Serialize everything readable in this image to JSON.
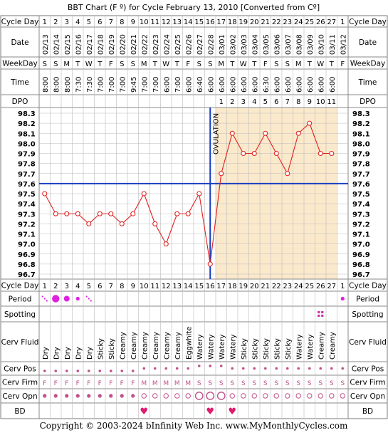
{
  "title": "BBT Chart (F º) for Cycle February 13, 2010  [Converted from Cº]",
  "footer": "Copyright © 2003-2024 bInfinity Web Inc.    www.MyMonthlyCycles.com",
  "row_labels": {
    "cycle_day": "Cycle Day",
    "date": "Date",
    "weekday": "WeekDay",
    "time": "Time",
    "dpo": "DPO",
    "period": "Period",
    "spotting": "Spotting",
    "cerv_fluid": "Cerv Fluid",
    "cerv_pos": "Cerv Pos",
    "cerv_firm": "Cerv Firm",
    "cerv_opn": "Cerv Opn",
    "bd": "BD"
  },
  "colors": {
    "grid": "#bbbbbb",
    "luteal_shade": "#fbe9cc",
    "line": "#e02020",
    "coverline": "#1a3fc0",
    "ovulation": "#1a3fc0",
    "period_dot": "#e020e0",
    "bd_heart": "#e01a6e",
    "spotting": "#cc33aa",
    "cerv_marker": "#c0508a"
  },
  "days": [
    {
      "cd": "1",
      "date": "02/13",
      "wd": "S",
      "time": "8:00",
      "fluid": "Dry",
      "firm": "F",
      "opn": "dot",
      "pos": "low"
    },
    {
      "cd": "2",
      "date": "02/14",
      "wd": "S",
      "time": "8:00",
      "fluid": "Dry",
      "firm": "F",
      "opn": "dot",
      "pos": "low"
    },
    {
      "cd": "3",
      "date": "02/15",
      "wd": "M",
      "time": "8:00",
      "fluid": "Dry",
      "firm": "F",
      "opn": "dot",
      "pos": "low"
    },
    {
      "cd": "4",
      "date": "02/16",
      "wd": "T",
      "time": "7:30",
      "fluid": "Dry",
      "firm": "F",
      "opn": "dot",
      "pos": "low"
    },
    {
      "cd": "5",
      "date": "02/17",
      "wd": "W",
      "time": "7:30",
      "fluid": "Dry",
      "firm": "F",
      "opn": "dot",
      "pos": "low"
    },
    {
      "cd": "6",
      "date": "02/18",
      "wd": "T",
      "time": "7:00",
      "fluid": "Sticky",
      "firm": "F",
      "opn": "dot",
      "pos": "low"
    },
    {
      "cd": "7",
      "date": "02/19",
      "wd": "F",
      "time": "7:00",
      "fluid": "Sticky",
      "firm": "F",
      "opn": "dot",
      "pos": "low"
    },
    {
      "cd": "8",
      "date": "02/20",
      "wd": "S",
      "time": "7:00",
      "fluid": "Creamy",
      "firm": "F",
      "opn": "dot",
      "pos": "low"
    },
    {
      "cd": "9",
      "date": "02/21",
      "wd": "S",
      "time": "9:45",
      "fluid": "Creamy",
      "firm": "F",
      "opn": "dot",
      "pos": "low"
    },
    {
      "cd": "10",
      "date": "02/22",
      "wd": "M",
      "time": "7:00",
      "fluid": "Creamy",
      "firm": "M",
      "opn": "open-sm",
      "pos": "mid"
    },
    {
      "cd": "11",
      "date": "02/23",
      "wd": "T",
      "time": "7:00",
      "fluid": "Creamy",
      "firm": "M",
      "opn": "open-sm",
      "pos": "mid"
    },
    {
      "cd": "12",
      "date": "02/24",
      "wd": "W",
      "time": "6:00",
      "fluid": "Creamy",
      "firm": "M",
      "opn": "open-sm",
      "pos": "mid"
    },
    {
      "cd": "13",
      "date": "02/25",
      "wd": "T",
      "time": "7:00",
      "fluid": "Creamy",
      "firm": "M",
      "opn": "open-sm",
      "pos": "mid"
    },
    {
      "cd": "14",
      "date": "02/26",
      "wd": "F",
      "time": "6:00",
      "fluid": "Eggwhite",
      "firm": "M",
      "opn": "open-sm",
      "pos": "mid"
    },
    {
      "cd": "15",
      "date": "02/27",
      "wd": "S",
      "time": "6:40",
      "fluid": "Watery",
      "firm": "S",
      "opn": "open-lg",
      "pos": "high"
    },
    {
      "cd": "16",
      "date": "02/28",
      "wd": "S",
      "time": "6:00",
      "fluid": "Watery",
      "firm": "S",
      "opn": "open-lg",
      "pos": "high"
    },
    {
      "cd": "17",
      "date": "03/01",
      "wd": "M",
      "time": "6:00",
      "fluid": "Watery",
      "firm": "S",
      "opn": "open-lg",
      "pos": "high"
    },
    {
      "cd": "18",
      "date": "03/02",
      "wd": "T",
      "time": "6:00",
      "fluid": "Watery",
      "firm": "S",
      "opn": "open-sm",
      "pos": "mid"
    },
    {
      "cd": "19",
      "date": "03/03",
      "wd": "W",
      "time": "6:00",
      "fluid": "Sticky",
      "firm": "S",
      "opn": "open-sm",
      "pos": "mid"
    },
    {
      "cd": "20",
      "date": "03/04",
      "wd": "T",
      "time": "6:00",
      "fluid": "Sticky",
      "firm": "S",
      "opn": "open-sm",
      "pos": "mid"
    },
    {
      "cd": "21",
      "date": "03/05",
      "wd": "F",
      "time": "6:30",
      "fluid": "Sticky",
      "firm": "S",
      "opn": "open-sm",
      "pos": "mid"
    },
    {
      "cd": "22",
      "date": "03/06",
      "wd": "S",
      "time": "6:00",
      "fluid": "Sticky",
      "firm": "S",
      "opn": "open-sm",
      "pos": "mid"
    },
    {
      "cd": "23",
      "date": "03/07",
      "wd": "S",
      "time": "6:00",
      "fluid": "Sticky",
      "firm": "S",
      "opn": "open-sm",
      "pos": "mid"
    },
    {
      "cd": "24",
      "date": "03/08",
      "wd": "M",
      "time": "6:00",
      "fluid": "Watery",
      "firm": "S",
      "opn": "open-sm",
      "pos": "mid"
    },
    {
      "cd": "25",
      "date": "03/09",
      "wd": "T",
      "time": "6:00",
      "fluid": "Watery",
      "firm": "S",
      "opn": "open-sm",
      "pos": "mid"
    },
    {
      "cd": "26",
      "date": "03/10",
      "wd": "W",
      "time": "6:00",
      "fluid": "Creamy",
      "firm": "S",
      "opn": "open-sm",
      "pos": "mid"
    },
    {
      "cd": "27",
      "date": "03/11",
      "wd": "T",
      "time": "6:00",
      "fluid": "Creamy",
      "firm": "S",
      "opn": "open-sm",
      "pos": "mid"
    },
    {
      "cd": "1",
      "date": "03/12",
      "wd": "F",
      "time": "",
      "fluid": "",
      "firm": "S",
      "opn": "open-sm",
      "pos": "mid"
    }
  ],
  "dpo": [
    "",
    "",
    "",
    "",
    "",
    "",
    "",
    "",
    "",
    "",
    "",
    "",
    "",
    "",
    "",
    "",
    "1",
    "2",
    "3",
    "4",
    "5",
    "6",
    "7",
    "8",
    "9",
    "10",
    "11",
    ""
  ],
  "period": [
    "spot",
    "heavy",
    "medium",
    "light",
    "spot",
    "",
    "",
    "",
    "",
    "",
    "",
    "",
    "",
    "",
    "",
    "",
    "",
    "",
    "",
    "",
    "",
    "",
    "",
    "",
    "",
    "",
    "",
    "light"
  ],
  "spotting_days": [
    "26"
  ],
  "bd_days": [
    "10",
    "16",
    "18"
  ],
  "chart_data": {
    "type": "line",
    "x_label": "Cycle Day",
    "x": [
      "1",
      "2",
      "3",
      "4",
      "5",
      "6",
      "7",
      "8",
      "9",
      "10",
      "11",
      "12",
      "13",
      "14",
      "15",
      "16",
      "17",
      "18",
      "19",
      "20",
      "21",
      "22",
      "23",
      "24",
      "25",
      "26",
      "27"
    ],
    "y": [
      97.5,
      97.3,
      97.3,
      97.3,
      97.2,
      97.3,
      97.3,
      97.2,
      97.3,
      97.5,
      97.2,
      97.0,
      97.3,
      97.3,
      97.5,
      96.8,
      97.7,
      98.1,
      97.9,
      97.9,
      98.1,
      97.9,
      97.7,
      98.1,
      98.2,
      97.9,
      97.9
    ],
    "y_ticks": [
      "98.3",
      "98.2",
      "98.1",
      "98.0",
      "97.9",
      "97.8",
      "97.7",
      "97.6",
      "97.5",
      "97.4",
      "97.3",
      "97.2",
      "97.1",
      "97.0",
      "96.9",
      "96.8",
      "96.7"
    ],
    "ylim": [
      96.7,
      98.3
    ],
    "coverline": 97.6,
    "ovulation_day": "16",
    "ovulation_label": "OVULATION",
    "grid": true
  }
}
